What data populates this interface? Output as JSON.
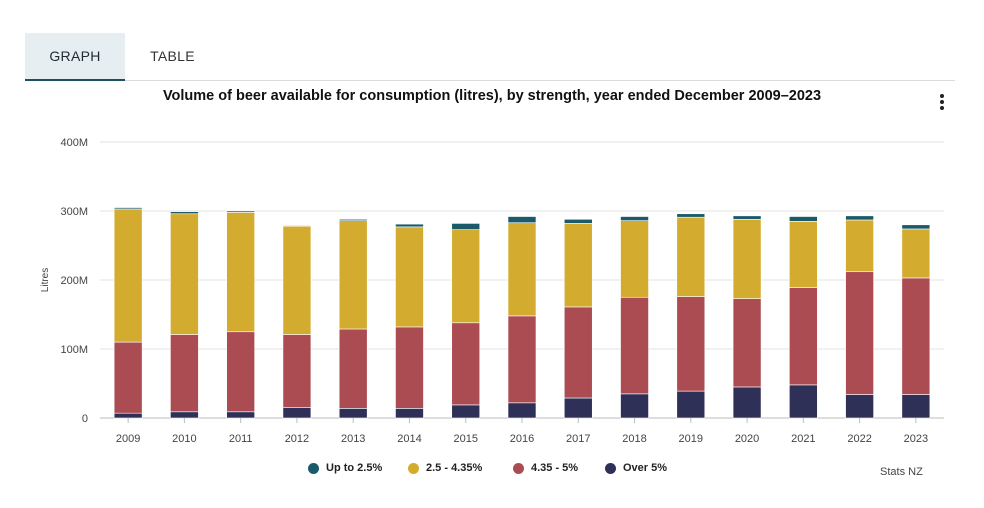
{
  "tabs": {
    "graph": "GRAPH",
    "table": "TABLE"
  },
  "chart_data": {
    "type": "bar",
    "stacked": true,
    "title": "Volume of beer available for consumption (litres), by strength, year ended December 2009–2023",
    "ylabel": "Litres",
    "xlabel": "",
    "ylim": [
      0,
      400
    ],
    "y_unit": "M",
    "yticks": [
      "0",
      "100M",
      "200M",
      "300M",
      "400M"
    ],
    "grid": true,
    "legend_position": "bottom",
    "categories": [
      "2009",
      "2010",
      "2011",
      "2012",
      "2013",
      "2014",
      "2015",
      "2016",
      "2017",
      "2018",
      "2019",
      "2020",
      "2021",
      "2022",
      "2023"
    ],
    "series": [
      {
        "name": "Over 5%",
        "color": "#2f3058",
        "values": [
          7,
          9,
          9,
          15,
          14,
          14,
          19,
          22,
          29,
          35,
          39,
          45,
          48,
          34,
          34
        ]
      },
      {
        "name": "4.35 - 5%",
        "color": "#ab4b52",
        "values": [
          103,
          112,
          116,
          106,
          115,
          118,
          119,
          126,
          132,
          140,
          137,
          128,
          141,
          178,
          169
        ]
      },
      {
        "name": "2.5 - 4.35%",
        "color": "#d3ac2f",
        "values": [
          193,
          175,
          173,
          157,
          157,
          145,
          135,
          135,
          121,
          111,
          115,
          115,
          96,
          75,
          71
        ]
      },
      {
        "name": "Up to 2.5%",
        "color": "#1b5a6b",
        "values": [
          2,
          3,
          2,
          1,
          2,
          4,
          9,
          9,
          6,
          6,
          5,
          5,
          7,
          6,
          6
        ]
      }
    ],
    "legend_order": [
      "Up to 2.5%",
      "2.5 - 4.35%",
      "4.35 - 5%",
      "Over 5%"
    ]
  },
  "source": "Stats NZ",
  "icons": {
    "menu": "more-vertical-icon"
  }
}
